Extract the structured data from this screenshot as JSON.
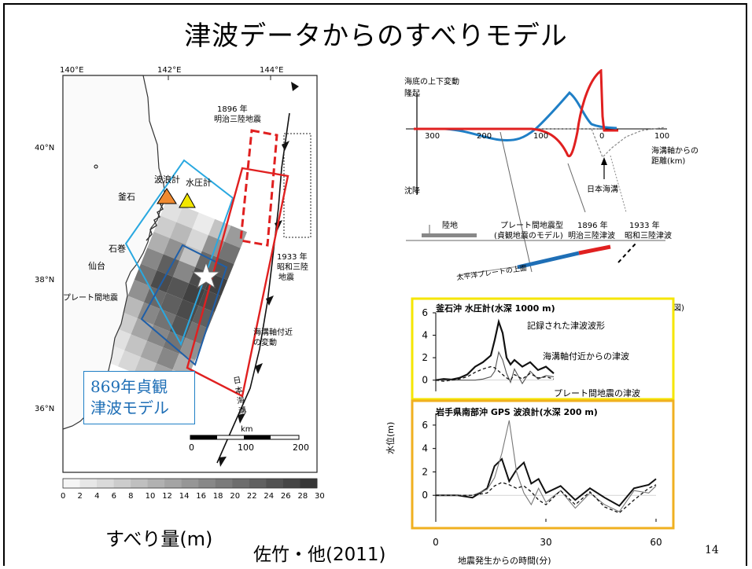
{
  "slide": {
    "title": "津波データからのすべりモデル",
    "slip_label": "すべり量(m)",
    "citation": "佐竹・他(2011)",
    "page_number": "14"
  },
  "map": {
    "lon_labels": [
      "140°E",
      "142°E",
      "144°E"
    ],
    "lat_labels": [
      "40°N",
      "38°N",
      "36°N"
    ],
    "places": {
      "kamaishi": "釜石",
      "ishinomaki": "石巻",
      "sendai": "仙台",
      "wave_gauge": "波浪計",
      "pressure_gauge": "水圧計",
      "interplate": "プレート間地震",
      "eq1896_year": "1896 年",
      "eq1896_name": "明治三陸地震",
      "eq1933_year": "1933 年",
      "eq1933_name": "昭和三陸",
      "eq1933_suffix": "地震",
      "trench_near_1": "海溝軸付近",
      "trench_near_2": "の変動",
      "japan_trench": "日本海溝"
    },
    "scale": {
      "unit": "km",
      "ticks": [
        "0",
        "100",
        "200"
      ]
    },
    "colorbar_ticks": [
      "0",
      "2",
      "4",
      "6",
      "8",
      "10",
      "12",
      "14",
      "16",
      "18",
      "20",
      "22",
      "24",
      "26",
      "28",
      "30"
    ],
    "callout_line1": "869年貞観",
    "callout_line2": "津波モデル",
    "colors": {
      "jogan_outer": "#29a8e0",
      "jogan_inner": "#1f5fa8",
      "red_fault": "#e02020",
      "wave_gauge": "#f08a30",
      "pressure_gauge": "#f2e600",
      "box_yellow": "#f5e600",
      "box_orange": "#f0b020"
    }
  },
  "profile": {
    "ylabel_top": "海底の上下変動",
    "uplift": "隆起",
    "subsidence": "沈降",
    "x_ticks": [
      "300",
      "200",
      "100",
      "0",
      "100"
    ],
    "xaxis_label_1": "海溝軸からの",
    "xaxis_label_2": "距離(km)",
    "japan_trench": "日本海溝",
    "land": "陸地",
    "interplate_1": "プレート間地震型",
    "interplate_2": "(貞観地震のモデル)",
    "m1896_1": "1896 年",
    "m1896_2": "明治三陸津波",
    "s1933_1": "1933 年",
    "s1933_2": "昭和三陸津波",
    "plate": "太平洋プレートの上面",
    "fig_fragment": "図)"
  },
  "chart_data": [
    {
      "type": "line",
      "title": "釜石沖 水圧計(水深 1000 m)",
      "xlabel": "",
      "ylabel": "",
      "ylim": [
        -1,
        6
      ],
      "y_ticks": [
        0,
        2,
        4,
        6
      ],
      "x": [
        0,
        2,
        4,
        6,
        8,
        10,
        12,
        14,
        15,
        16,
        17,
        18,
        19,
        20,
        22,
        24,
        26,
        28,
        30
      ],
      "series": [
        {
          "name": "記録された津波波形",
          "values": [
            0,
            0.1,
            0.05,
            0.2,
            0.5,
            1.2,
            1.6,
            2.2,
            3.6,
            5.2,
            4.2,
            2.0,
            1.4,
            1.8,
            1.2,
            1.6,
            0.9,
            1.2,
            0.6
          ]
        },
        {
          "name": "海溝軸付近からの津波",
          "values": [
            0,
            0,
            0,
            0,
            0,
            0,
            0.1,
            0.3,
            0.8,
            2.5,
            1.8,
            0.6,
            -0.2,
            1.0,
            -0.3,
            0.8,
            0.1,
            0.4,
            0.3
          ]
        },
        {
          "name": "プレート間地震の津波",
          "values": [
            0,
            -0.1,
            0,
            0.1,
            0.3,
            0.7,
            1.0,
            1.2,
            1.1,
            0.8,
            0.5,
            0.2,
            0,
            0.5,
            0.1,
            0.6,
            0.2,
            0.3,
            0.1
          ]
        }
      ],
      "annotations": [
        "記録された津波波形",
        "海溝軸付近からの津波",
        "プレート間地震の津波"
      ]
    },
    {
      "type": "line",
      "title": "岩手県南部沖 GPS 波浪計(水深 200 m)",
      "xlabel": "地震発生からの時間(分)",
      "ylabel": "水位(m)",
      "ylim": [
        -2,
        7
      ],
      "y_ticks": [
        0,
        2,
        4,
        6
      ],
      "x_ticks": [
        0,
        30,
        60
      ],
      "x": [
        0,
        6,
        10,
        14,
        16,
        18,
        20,
        22,
        24,
        26,
        28,
        30,
        34,
        38,
        42,
        46,
        50,
        54,
        58,
        60
      ],
      "series": [
        {
          "name": "記録",
          "values": [
            0,
            0,
            -0.2,
            0.6,
            2.5,
            3.1,
            1.2,
            2.2,
            2.8,
            1.0,
            1.4,
            0.2,
            0.8,
            -0.4,
            0.6,
            -0.2,
            -0.9,
            0.6,
            0.9,
            1.4
          ]
        },
        {
          "name": "海溝軸付近",
          "values": [
            0,
            0,
            0,
            0.5,
            1.5,
            3.6,
            6.4,
            2.0,
            0.2,
            -0.8,
            0.6,
            -0.6,
            0.4,
            -1.1,
            0.2,
            -0.8,
            -1.4,
            0.4,
            0.2,
            0.8
          ]
        },
        {
          "name": "プレート間",
          "values": [
            0,
            0,
            0,
            0.2,
            0.8,
            1.1,
            0.9,
            0.6,
            0.8,
            0.3,
            -0.4,
            -0.8,
            0.4,
            -0.8,
            0.3,
            -1.0,
            -1.5,
            -0.4,
            0.6,
            0.9
          ]
        }
      ]
    }
  ]
}
